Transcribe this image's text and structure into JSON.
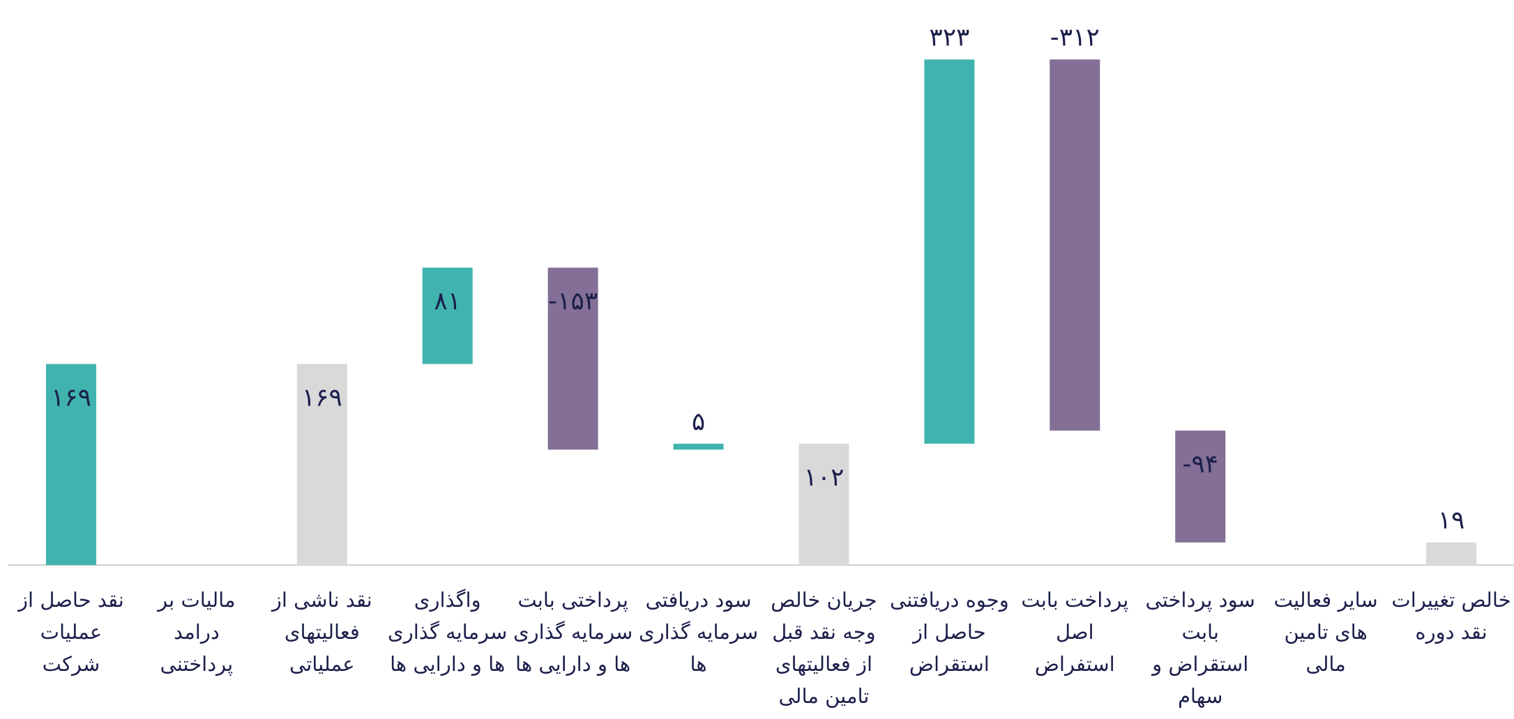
{
  "chart_data": {
    "type": "waterfall",
    "categories": [
      "نقد حاصل از عملیات شرکت",
      "مالیات بر درامد پرداختنی",
      "نقد  ناشی از فعالیتهای عملیاتی",
      "واگذاری سرمایه گذاری ها و دارایی ها",
      "پرداختی بابت سرمایه گذاری ها و دارایی ها",
      "سود دریافتی سرمایه گذاری ها",
      "جریان خالص وجه نقد قبل از فعالیتهای تامین مالی",
      "وجوه دریافتنی حاصل از استقراض",
      "پرداخت  بابت اصل استفراض",
      "سود پرداختی بابت استقراض و سهام",
      "سایر فعالیت های تامین مالی",
      "خالص تغییرات نقد دوره"
    ],
    "values": [
      169,
      null,
      169,
      81,
      -153,
      5,
      102,
      323,
      -312,
      -94,
      null,
      19
    ],
    "value_labels": [
      "۱۶۹",
      null,
      "۱۶۹",
      "۸۱",
      "-۱۵۳",
      "۵",
      "۱۰۲",
      "۳۲۳",
      "-۳۱۲",
      "-۹۴",
      null,
      "۱۹"
    ],
    "is_total": [
      false,
      false,
      true,
      false,
      false,
      false,
      true,
      false,
      false,
      false,
      false,
      true
    ],
    "increase_color": "#41b3ae",
    "decrease_color": "#846f96",
    "total_color": "#d9d9d9",
    "ylim": [
      0,
      475
    ]
  }
}
